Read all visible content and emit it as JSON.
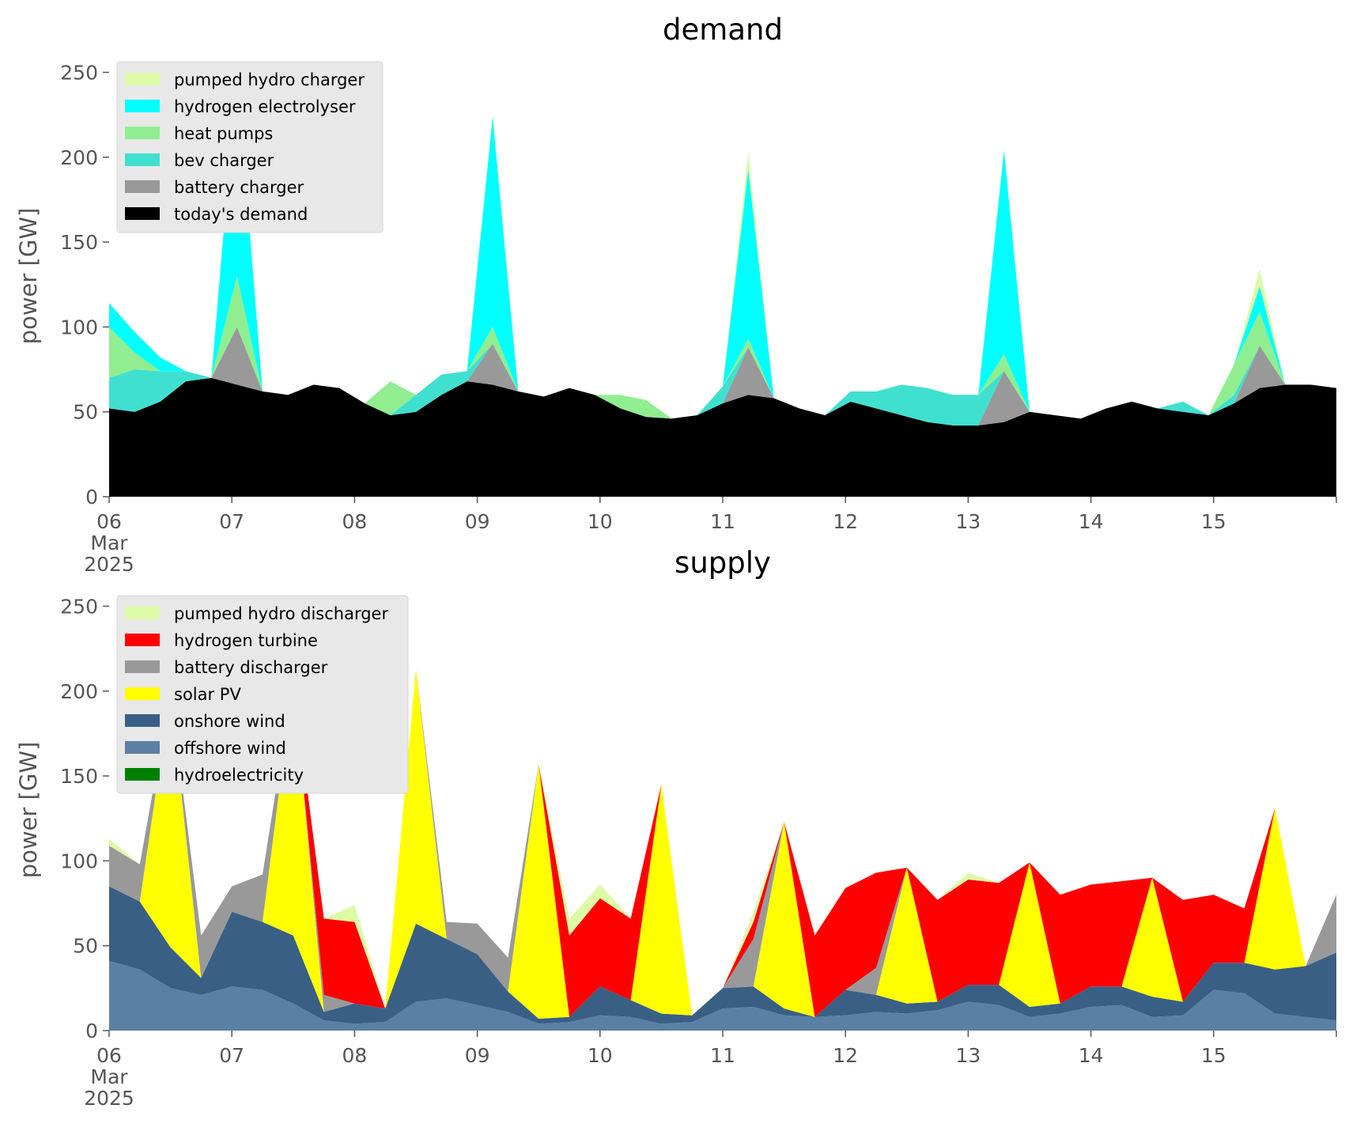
{
  "chart_data": [
    {
      "type": "area",
      "stacked": true,
      "title": "demand",
      "ylabel": "power [GW]",
      "xlabel": "",
      "ylim": [
        0,
        260
      ],
      "yticks": [
        0,
        50,
        100,
        150,
        200,
        250
      ],
      "x_range": [
        "2025-03-06T00:00",
        "2025-03-16T00:00"
      ],
      "xtick_labels": [
        "06",
        "07",
        "08",
        "09",
        "10",
        "11",
        "12",
        "13",
        "14",
        "15"
      ],
      "xtick_month": "Mar",
      "xtick_year": "2025",
      "grid": false,
      "legend_position": "upper-left",
      "legend_order": [
        "pumped hydro charger",
        "hydrogen electrolyser",
        "heat pumps",
        "bev charger",
        "battery charger",
        "today's demand"
      ],
      "series": [
        {
          "name": "today's demand",
          "color": "#000000",
          "x": [
            0,
            0.5,
            1,
            1.5,
            2,
            2.5,
            3,
            3.5,
            4,
            4.5,
            5,
            5.5,
            6,
            6.5,
            7,
            7.5,
            8,
            8.5,
            9,
            9.5,
            10,
            10.5,
            11,
            11.5,
            12,
            12.5,
            13,
            13.5,
            14,
            14.5,
            15,
            15.5,
            16,
            16.5,
            17,
            17.5,
            18,
            18.5,
            19,
            19.5,
            20,
            20.5,
            21,
            21.5,
            22,
            22.5,
            23,
            23.5,
            24
          ],
          "values": [
            52,
            50,
            56,
            68,
            70,
            66,
            62,
            60,
            66,
            64,
            55,
            48,
            50,
            60,
            68,
            66,
            62,
            59,
            64,
            60,
            52,
            47,
            46,
            48,
            55,
            60,
            58,
            52,
            48,
            56,
            52,
            48,
            44,
            42,
            42,
            44,
            50,
            48,
            46,
            52,
            56,
            52,
            50,
            48,
            55,
            64,
            66,
            66,
            64
          ]
        },
        {
          "name": "battery charger",
          "color": "#999999",
          "values": [
            0,
            0,
            0,
            0,
            0,
            34,
            0,
            0,
            0,
            0,
            0,
            0,
            0,
            0,
            0,
            24,
            0,
            0,
            0,
            0,
            0,
            0,
            0,
            0,
            0,
            28,
            0,
            0,
            0,
            0,
            0,
            0,
            0,
            0,
            0,
            30,
            0,
            0,
            0,
            0,
            0,
            0,
            0,
            0,
            0,
            25,
            0,
            0,
            0
          ]
        },
        {
          "name": "bev charger",
          "color": "#40e0d0",
          "values": [
            18,
            25,
            18,
            6,
            0,
            0,
            0,
            0,
            0,
            0,
            0,
            0,
            10,
            12,
            6,
            0,
            0,
            0,
            0,
            0,
            0,
            0,
            0,
            0,
            10,
            0,
            0,
            0,
            0,
            6,
            10,
            18,
            20,
            18,
            18,
            0,
            0,
            0,
            0,
            0,
            0,
            0,
            6,
            0,
            5,
            0,
            0,
            0,
            0
          ]
        },
        {
          "name": "heat pumps",
          "color": "#90ee90",
          "values": [
            30,
            10,
            0,
            0,
            0,
            30,
            0,
            0,
            0,
            0,
            0,
            20,
            0,
            0,
            0,
            10,
            0,
            0,
            0,
            0,
            8,
            10,
            0,
            0,
            0,
            5,
            0,
            0,
            0,
            0,
            0,
            0,
            0,
            0,
            0,
            10,
            0,
            0,
            0,
            0,
            0,
            0,
            0,
            0,
            18,
            20,
            0,
            0,
            0
          ]
        },
        {
          "name": "hydrogen electrolyser",
          "color": "#00ffff",
          "values": [
            14,
            12,
            8,
            0,
            0,
            120,
            0,
            0,
            0,
            0,
            0,
            0,
            0,
            0,
            0,
            124,
            0,
            0,
            0,
            0,
            0,
            0,
            0,
            0,
            0,
            100,
            0,
            0,
            0,
            0,
            0,
            0,
            0,
            0,
            0,
            120,
            0,
            0,
            0,
            0,
            0,
            0,
            0,
            0,
            0,
            15,
            0,
            0,
            0
          ]
        },
        {
          "name": "pumped hydro charger",
          "color": "#ddfaa7",
          "values": [
            0,
            0,
            0,
            0,
            0,
            0,
            0,
            0,
            0,
            0,
            0,
            0,
            0,
            0,
            0,
            0,
            0,
            0,
            0,
            0,
            0,
            0,
            0,
            0,
            0,
            10,
            0,
            0,
            0,
            0,
            0,
            0,
            0,
            0,
            0,
            0,
            0,
            0,
            0,
            0,
            0,
            0,
            0,
            0,
            0,
            10,
            0,
            0,
            0
          ]
        }
      ]
    },
    {
      "type": "area",
      "stacked": true,
      "title": "supply",
      "ylabel": "power [GW]",
      "xlabel": "",
      "ylim": [
        0,
        260
      ],
      "yticks": [
        0,
        50,
        100,
        150,
        200,
        250
      ],
      "x_range": [
        "2025-03-06T00:00",
        "2025-03-16T00:00"
      ],
      "xtick_labels": [
        "06",
        "07",
        "08",
        "09",
        "10",
        "11",
        "12",
        "13",
        "14",
        "15"
      ],
      "xtick_month": "Mar",
      "xtick_year": "2025",
      "grid": false,
      "legend_position": "upper-left",
      "legend_order": [
        "pumped hydro discharger",
        "hydrogen turbine",
        "battery discharger",
        "solar PV",
        "onshore wind",
        "offshore wind",
        "hydroelectricity"
      ],
      "series": [
        {
          "name": "hydroelectricity",
          "color": "#008000",
          "x": [
            0,
            1,
            2,
            3,
            4,
            5,
            6,
            7,
            8,
            9,
            10
          ],
          "values": [
            1,
            1,
            1,
            1,
            1,
            1,
            1,
            1,
            1,
            1,
            1
          ]
        },
        {
          "name": "offshore wind",
          "color": "#5a80a4",
          "x": [
            0,
            0.25,
            0.5,
            0.75,
            1,
            1.25,
            1.5,
            1.75,
            2,
            2.25,
            2.5,
            2.75,
            3,
            3.25,
            3.5,
            3.75,
            4,
            4.25,
            4.5,
            4.75,
            5,
            5.25,
            5.5,
            5.75,
            6,
            6.25,
            6.5,
            6.75,
            7,
            7.25,
            7.5,
            7.75,
            8,
            8.25,
            8.5,
            8.75,
            9,
            9.25,
            9.5,
            9.75,
            10
          ],
          "values": [
            41,
            36,
            25,
            21,
            26,
            24,
            16,
            6,
            4,
            5,
            17,
            19,
            15,
            11,
            4,
            5,
            9,
            8,
            4,
            5,
            13,
            14,
            9,
            8,
            9,
            11,
            10,
            12,
            17,
            15,
            8,
            10,
            14,
            15,
            8,
            9,
            24,
            22,
            10,
            8,
            6
          ]
        },
        {
          "name": "onshore wind",
          "color": "#3a5f85",
          "values": [
            44,
            40,
            24,
            10,
            44,
            40,
            40,
            5,
            12,
            8,
            46,
            35,
            30,
            12,
            3,
            3,
            17,
            10,
            6,
            4,
            12,
            12,
            4,
            0,
            15,
            10,
            6,
            5,
            10,
            12,
            6,
            6,
            12,
            11,
            12,
            8,
            16,
            18,
            26,
            30,
            40
          ]
        },
        {
          "name": "solar PV",
          "color": "#ffff00",
          "values": [
            0,
            0,
            150,
            0,
            0,
            0,
            150,
            0,
            0,
            0,
            150,
            0,
            0,
            0,
            150,
            0,
            0,
            0,
            135,
            0,
            0,
            0,
            110,
            0,
            0,
            0,
            80,
            0,
            0,
            0,
            85,
            0,
            0,
            0,
            70,
            0,
            0,
            0,
            95,
            0,
            0
          ]
        },
        {
          "name": "battery discharger",
          "color": "#999999",
          "values": [
            24,
            22,
            0,
            25,
            15,
            28,
            0,
            10,
            0,
            0,
            0,
            10,
            18,
            20,
            0,
            0,
            0,
            0,
            0,
            0,
            0,
            28,
            0,
            0,
            0,
            16,
            0,
            0,
            0,
            0,
            0,
            0,
            0,
            0,
            0,
            0,
            0,
            0,
            0,
            0,
            34
          ]
        },
        {
          "name": "hydrogen turbine",
          "color": "#ff0000",
          "values": [
            0,
            0,
            0,
            0,
            0,
            0,
            0,
            45,
            48,
            0,
            0,
            0,
            0,
            0,
            0,
            48,
            52,
            48,
            0,
            0,
            0,
            10,
            0,
            48,
            60,
            56,
            0,
            60,
            62,
            60,
            0,
            64,
            60,
            62,
            0,
            60,
            40,
            32,
            0,
            0,
            0
          ]
        },
        {
          "name": "pumped hydro discharger",
          "color": "#ddfaa7",
          "values": [
            4,
            0,
            0,
            0,
            0,
            0,
            0,
            0,
            10,
            0,
            0,
            0,
            0,
            0,
            0,
            10,
            8,
            0,
            0,
            0,
            0,
            6,
            0,
            0,
            0,
            0,
            0,
            0,
            4,
            0,
            0,
            0,
            0,
            0,
            0,
            0,
            0,
            0,
            0,
            0,
            0
          ]
        }
      ]
    }
  ]
}
